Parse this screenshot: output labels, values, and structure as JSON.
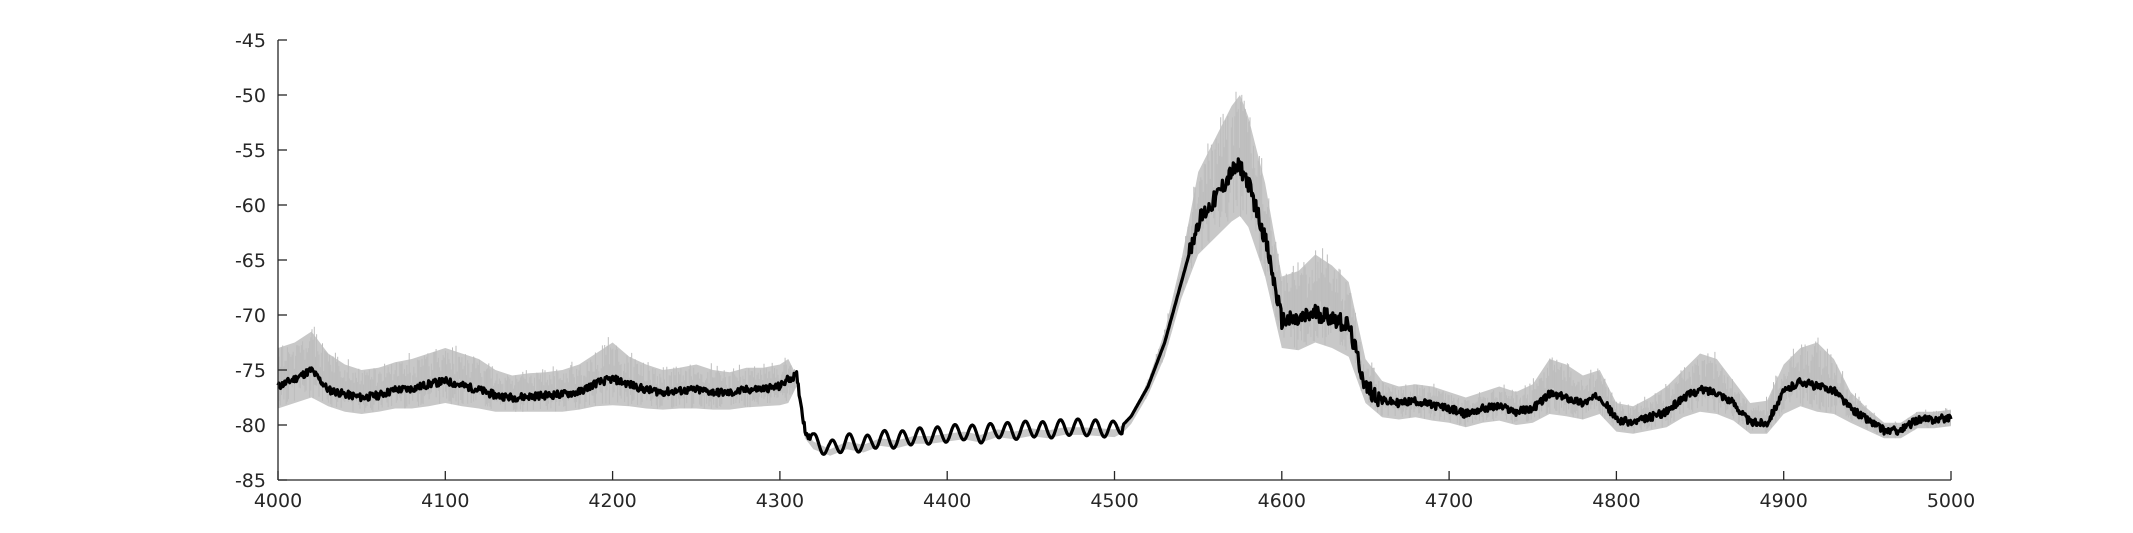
{
  "chart_data": {
    "type": "line",
    "title": "",
    "xlabel": "",
    "ylabel": "",
    "xlim": [
      4000,
      5000
    ],
    "ylim": [
      -85,
      -45
    ],
    "grid": false,
    "legend": "none",
    "x_ticks": [
      4000,
      4100,
      4200,
      4300,
      4400,
      4500,
      4600,
      4700,
      4800,
      4900,
      5000
    ],
    "x_tick_labels": [
      "4000",
      "4100",
      "4200",
      "4300",
      "4400",
      "4500",
      "4600",
      "4700",
      "4800",
      "4900",
      "5000"
    ],
    "y_ticks": [
      -45,
      -50,
      -55,
      -60,
      -65,
      -70,
      -75,
      -80,
      -85
    ],
    "y_tick_labels": [
      "-45",
      "-50",
      "-55",
      "-60",
      "-65",
      "-70",
      "-75",
      "-80",
      "-85"
    ],
    "series": [
      {
        "role": "mean",
        "color": "#000000",
        "x": [
          4000,
          4010,
          4020,
          4030,
          4040,
          4050,
          4060,
          4070,
          4080,
          4090,
          4100,
          4110,
          4120,
          4130,
          4140,
          4150,
          4160,
          4170,
          4180,
          4190,
          4200,
          4210,
          4220,
          4230,
          4240,
          4250,
          4260,
          4270,
          4280,
          4290,
          4300,
          4305,
          4310,
          4315,
          4320,
          4330,
          4340,
          4350,
          4360,
          4370,
          4380,
          4390,
          4400,
          4410,
          4420,
          4430,
          4440,
          4450,
          4460,
          4470,
          4480,
          4490,
          4500,
          4505,
          4510,
          4520,
          4530,
          4540,
          4550,
          4560,
          4570,
          4575,
          4580,
          4590,
          4600,
          4610,
          4620,
          4630,
          4640,
          4650,
          4660,
          4670,
          4680,
          4690,
          4700,
          4710,
          4720,
          4730,
          4740,
          4750,
          4760,
          4770,
          4780,
          4790,
          4800,
          4810,
          4820,
          4830,
          4840,
          4850,
          4860,
          4870,
          4880,
          4890,
          4900,
          4910,
          4920,
          4930,
          4940,
          4950,
          4960,
          4970,
          4980,
          4990,
          5000
        ],
        "y": [
          -76.5,
          -75.8,
          -75.0,
          -76.8,
          -77.2,
          -77.5,
          -77.3,
          -76.8,
          -76.7,
          -76.3,
          -76.0,
          -76.4,
          -76.8,
          -77.3,
          -77.5,
          -77.4,
          -77.3,
          -77.2,
          -77.0,
          -76.2,
          -75.8,
          -76.3,
          -76.8,
          -77.0,
          -76.9,
          -76.8,
          -77.0,
          -77.1,
          -76.8,
          -76.7,
          -76.5,
          -75.8,
          -75.5,
          -80.5,
          -81.5,
          -82.2,
          -81.5,
          -81.8,
          -81.2,
          -81.4,
          -81.0,
          -81.0,
          -80.8,
          -80.6,
          -80.9,
          -80.4,
          -80.6,
          -80.3,
          -80.5,
          -80.2,
          -80.2,
          -80.3,
          -80.4,
          -80.0,
          -79.2,
          -76.5,
          -72.5,
          -67.0,
          -61.5,
          -59.5,
          -57.0,
          -56.5,
          -58.0,
          -63.0,
          -70.5,
          -70.5,
          -69.8,
          -70.2,
          -71.0,
          -76.5,
          -77.8,
          -78.0,
          -77.8,
          -78.2,
          -78.5,
          -79.0,
          -78.5,
          -78.3,
          -78.8,
          -78.5,
          -77.2,
          -77.5,
          -78.0,
          -77.3,
          -79.5,
          -79.8,
          -79.3,
          -78.8,
          -77.5,
          -76.8,
          -77.0,
          -78.0,
          -79.8,
          -79.8,
          -77.0,
          -76.0,
          -76.5,
          -76.8,
          -78.5,
          -79.5,
          -80.5,
          -80.5,
          -79.5,
          -79.5,
          -79.3
        ]
      },
      {
        "role": "spread",
        "color": "#c8c8c8",
        "x": [
          4000,
          4010,
          4020,
          4030,
          4040,
          4050,
          4060,
          4070,
          4080,
          4090,
          4100,
          4110,
          4120,
          4130,
          4140,
          4150,
          4160,
          4170,
          4180,
          4190,
          4200,
          4210,
          4220,
          4230,
          4240,
          4250,
          4260,
          4270,
          4280,
          4290,
          4300,
          4305,
          4310,
          4315,
          4320,
          4330,
          4340,
          4350,
          4360,
          4370,
          4380,
          4390,
          4400,
          4410,
          4420,
          4430,
          4440,
          4450,
          4460,
          4470,
          4480,
          4490,
          4500,
          4505,
          4510,
          4520,
          4530,
          4540,
          4550,
          4560,
          4570,
          4575,
          4580,
          4590,
          4600,
          4610,
          4620,
          4630,
          4640,
          4650,
          4660,
          4670,
          4680,
          4690,
          4700,
          4710,
          4720,
          4730,
          4740,
          4750,
          4760,
          4770,
          4780,
          4790,
          4800,
          4810,
          4820,
          4830,
          4840,
          4850,
          4860,
          4870,
          4880,
          4890,
          4900,
          4910,
          4920,
          4930,
          4940,
          4950,
          4960,
          4970,
          4980,
          4990,
          5000
        ],
        "upper": [
          -73.0,
          -72.5,
          -71.5,
          -73.5,
          -74.5,
          -75.0,
          -74.8,
          -74.3,
          -74.0,
          -73.5,
          -73.0,
          -73.5,
          -74.0,
          -75.0,
          -75.5,
          -75.3,
          -75.2,
          -75.0,
          -74.5,
          -73.5,
          -72.5,
          -73.8,
          -74.5,
          -75.0,
          -74.8,
          -74.5,
          -75.0,
          -75.2,
          -74.8,
          -74.8,
          -74.5,
          -74.0,
          -75.5,
          -80.5,
          -81.5,
          -82.2,
          -81.5,
          -81.8,
          -81.2,
          -81.4,
          -81.0,
          -81.0,
          -80.8,
          -80.6,
          -80.9,
          -80.4,
          -80.6,
          -80.3,
          -80.5,
          -80.2,
          -80.2,
          -80.3,
          -80.4,
          -80.0,
          -79.2,
          -76.0,
          -71.5,
          -65.0,
          -57.0,
          -54.0,
          -51.0,
          -50.0,
          -52.0,
          -58.0,
          -66.5,
          -66.0,
          -64.5,
          -65.5,
          -67.0,
          -74.0,
          -76.0,
          -76.5,
          -76.3,
          -76.5,
          -77.0,
          -77.5,
          -77.0,
          -76.5,
          -77.0,
          -76.3,
          -74.0,
          -74.5,
          -75.5,
          -75.0,
          -78.0,
          -78.3,
          -77.5,
          -76.5,
          -75.0,
          -73.5,
          -74.0,
          -76.0,
          -78.0,
          -77.8,
          -74.5,
          -73.0,
          -72.5,
          -74.0,
          -77.0,
          -78.5,
          -79.8,
          -79.8,
          -78.8,
          -78.8,
          -78.6
        ],
        "lower": [
          -78.5,
          -78.0,
          -77.5,
          -78.3,
          -78.8,
          -79.0,
          -78.8,
          -78.5,
          -78.5,
          -78.3,
          -78.0,
          -78.3,
          -78.5,
          -78.8,
          -78.8,
          -78.8,
          -78.8,
          -78.8,
          -78.6,
          -78.3,
          -78.2,
          -78.3,
          -78.5,
          -78.6,
          -78.5,
          -78.5,
          -78.6,
          -78.6,
          -78.4,
          -78.3,
          -78.2,
          -78.0,
          -76.5,
          -81.2,
          -82.2,
          -82.8,
          -82.2,
          -82.5,
          -81.9,
          -82.1,
          -81.7,
          -81.7,
          -81.5,
          -81.3,
          -81.6,
          -81.1,
          -81.3,
          -81.0,
          -81.2,
          -80.9,
          -80.9,
          -81.0,
          -81.1,
          -80.7,
          -79.9,
          -77.3,
          -73.8,
          -68.5,
          -64.5,
          -63.0,
          -61.5,
          -61.0,
          -62.0,
          -66.5,
          -73.0,
          -73.2,
          -72.5,
          -73.0,
          -73.8,
          -78.0,
          -79.3,
          -79.5,
          -79.3,
          -79.6,
          -79.8,
          -80.2,
          -79.8,
          -79.6,
          -80.0,
          -79.8,
          -79.0,
          -79.2,
          -79.5,
          -79.0,
          -80.6,
          -80.8,
          -80.5,
          -80.2,
          -79.3,
          -78.8,
          -79.0,
          -79.6,
          -80.8,
          -80.8,
          -79.0,
          -78.3,
          -78.8,
          -79.0,
          -79.8,
          -80.5,
          -81.2,
          -81.2,
          -80.3,
          -80.3,
          -80.1
        ]
      }
    ]
  }
}
